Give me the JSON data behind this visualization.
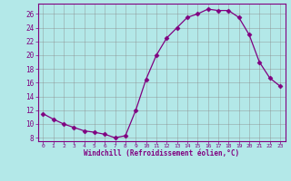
{
  "x": [
    0,
    1,
    2,
    3,
    4,
    5,
    6,
    7,
    8,
    9,
    10,
    11,
    12,
    13,
    14,
    15,
    16,
    17,
    18,
    19,
    20,
    21,
    22,
    23
  ],
  "y": [
    11.5,
    10.7,
    10.0,
    9.5,
    9.0,
    8.8,
    8.5,
    8.0,
    8.3,
    12.0,
    16.5,
    20.0,
    22.5,
    24.0,
    25.5,
    26.0,
    26.7,
    26.5,
    26.5,
    25.5,
    23.0,
    19.0,
    16.7,
    15.5
  ],
  "line_color": "#800080",
  "marker": "D",
  "marker_size": 2.5,
  "bg_color": "#b3e8e8",
  "grid_color": "#888888",
  "xlabel": "Windchill (Refroidissement éolien,°C)",
  "xlabel_color": "#800080",
  "ylim": [
    7.5,
    27.5
  ],
  "xlim": [
    -0.5,
    23.5
  ],
  "yticks": [
    8,
    10,
    12,
    14,
    16,
    18,
    20,
    22,
    24,
    26
  ],
  "xtick_labels": [
    "0",
    "1",
    "2",
    "3",
    "4",
    "5",
    "6",
    "7",
    "8",
    "9",
    "10",
    "11",
    "12",
    "13",
    "14",
    "15",
    "16",
    "17",
    "18",
    "19",
    "20",
    "21",
    "22",
    "23"
  ],
  "tick_color": "#800080",
  "spine_color": "#800080",
  "axis_bg_color": "#b3e8e8",
  "figsize": [
    3.2,
    2.0
  ],
  "dpi": 100
}
